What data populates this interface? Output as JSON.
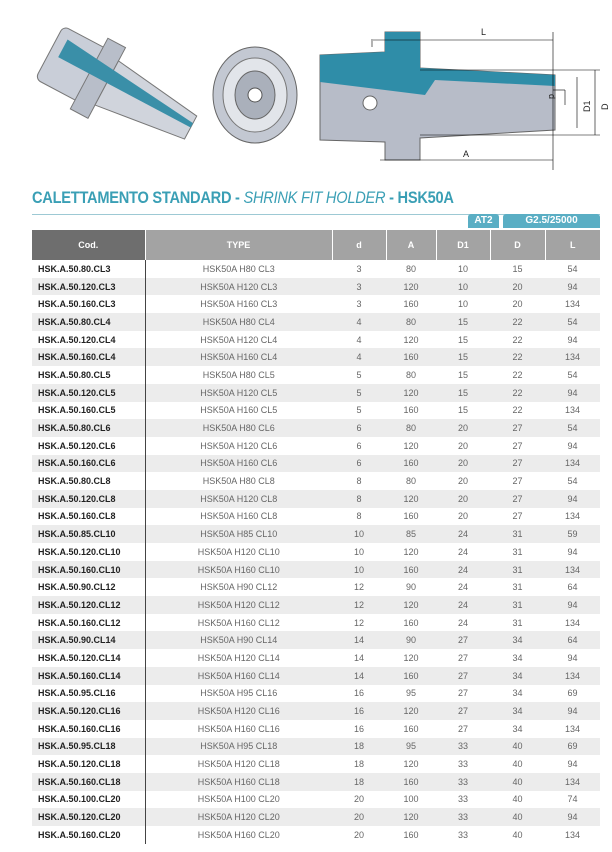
{
  "title": {
    "main": "CALETTAMENTO STANDARD - ",
    "italic": "SHRINK FIT HOLDER",
    "suffix": " - HSK50A"
  },
  "badges": [
    "AT2",
    "G2.5/25000"
  ],
  "drawing_labels": {
    "L": "L",
    "A": "A",
    "d": "d",
    "D1": "D1",
    "D": "D"
  },
  "colors": {
    "accent": "#3a9fb5",
    "badge": "#5aaec4",
    "header_dark": "#6e6e6e",
    "header_light": "#a3a3a3"
  },
  "table": {
    "headers": [
      "Cod.",
      "TYPE",
      "d",
      "A",
      "D1",
      "D",
      "L"
    ],
    "rows": [
      [
        "HSK.A.50.80.CL3",
        "HSK50A H80 CL3",
        "3",
        "80",
        "10",
        "15",
        "54"
      ],
      [
        "HSK.A.50.120.CL3",
        "HSK50A H120 CL3",
        "3",
        "120",
        "10",
        "20",
        "94"
      ],
      [
        "HSK.A.50.160.CL3",
        "HSK50A H160 CL3",
        "3",
        "160",
        "10",
        "20",
        "134"
      ],
      [
        "HSK.A.50.80.CL4",
        "HSK50A H80 CL4",
        "4",
        "80",
        "15",
        "22",
        "54"
      ],
      [
        "HSK.A.50.120.CL4",
        "HSK50A H120 CL4",
        "4",
        "120",
        "15",
        "22",
        "94"
      ],
      [
        "HSK.A.50.160.CL4",
        "HSK50A H160 CL4",
        "4",
        "160",
        "15",
        "22",
        "134"
      ],
      [
        "HSK.A.50.80.CL5",
        "HSK50A H80 CL5",
        "5",
        "80",
        "15",
        "22",
        "54"
      ],
      [
        "HSK.A.50.120.CL5",
        "HSK50A H120 CL5",
        "5",
        "120",
        "15",
        "22",
        "94"
      ],
      [
        "HSK.A.50.160.CL5",
        "HSK50A H160 CL5",
        "5",
        "160",
        "15",
        "22",
        "134"
      ],
      [
        "HSK.A.50.80.CL6",
        "HSK50A H80 CL6",
        "6",
        "80",
        "20",
        "27",
        "54"
      ],
      [
        "HSK.A.50.120.CL6",
        "HSK50A H120 CL6",
        "6",
        "120",
        "20",
        "27",
        "94"
      ],
      [
        "HSK.A.50.160.CL6",
        "HSK50A H160 CL6",
        "6",
        "160",
        "20",
        "27",
        "134"
      ],
      [
        "HSK.A.50.80.CL8",
        "HSK50A H80 CL8",
        "8",
        "80",
        "20",
        "27",
        "54"
      ],
      [
        "HSK.A.50.120.CL8",
        "HSK50A H120 CL8",
        "8",
        "120",
        "20",
        "27",
        "94"
      ],
      [
        "HSK.A.50.160.CL8",
        "HSK50A H160 CL8",
        "8",
        "160",
        "20",
        "27",
        "134"
      ],
      [
        "HSK.A.50.85.CL10",
        "HSK50A H85 CL10",
        "10",
        "85",
        "24",
        "31",
        "59"
      ],
      [
        "HSK.A.50.120.CL10",
        "HSK50A H120 CL10",
        "10",
        "120",
        "24",
        "31",
        "94"
      ],
      [
        "HSK.A.50.160.CL10",
        "HSK50A H160 CL10",
        "10",
        "160",
        "24",
        "31",
        "134"
      ],
      [
        "HSK.A.50.90.CL12",
        "HSK50A H90 CL12",
        "12",
        "90",
        "24",
        "31",
        "64"
      ],
      [
        "HSK.A.50.120.CL12",
        "HSK50A H120 CL12",
        "12",
        "120",
        "24",
        "31",
        "94"
      ],
      [
        "HSK.A.50.160.CL12",
        "HSK50A H160 CL12",
        "12",
        "160",
        "24",
        "31",
        "134"
      ],
      [
        "HSK.A.50.90.CL14",
        "HSK50A H90 CL14",
        "14",
        "90",
        "27",
        "34",
        "64"
      ],
      [
        "HSK.A.50.120.CL14",
        "HSK50A H120 CL14",
        "14",
        "120",
        "27",
        "34",
        "94"
      ],
      [
        "HSK.A.50.160.CL14",
        "HSK50A H160 CL14",
        "14",
        "160",
        "27",
        "34",
        "134"
      ],
      [
        "HSK.A.50.95.CL16",
        "HSK50A H95 CL16",
        "16",
        "95",
        "27",
        "34",
        "69"
      ],
      [
        "HSK.A.50.120.CL16",
        "HSK50A H120 CL16",
        "16",
        "120",
        "27",
        "34",
        "94"
      ],
      [
        "HSK.A.50.160.CL16",
        "HSK50A H160 CL16",
        "16",
        "160",
        "27",
        "34",
        "134"
      ],
      [
        "HSK.A.50.95.CL18",
        "HSK50A H95 CL18",
        "18",
        "95",
        "33",
        "40",
        "69"
      ],
      [
        "HSK.A.50.120.CL18",
        "HSK50A H120 CL18",
        "18",
        "120",
        "33",
        "40",
        "94"
      ],
      [
        "HSK.A.50.160.CL18",
        "HSK50A H160 CL18",
        "18",
        "160",
        "33",
        "40",
        "134"
      ],
      [
        "HSK.A.50.100.CL20",
        "HSK50A H100 CL20",
        "20",
        "100",
        "33",
        "40",
        "74"
      ],
      [
        "HSK.A.50.120.CL20",
        "HSK50A H120 CL20",
        "20",
        "120",
        "33",
        "40",
        "94"
      ],
      [
        "HSK.A.50.160.CL20",
        "HSK50A H160 CL20",
        "20",
        "160",
        "33",
        "40",
        "134"
      ]
    ]
  }
}
